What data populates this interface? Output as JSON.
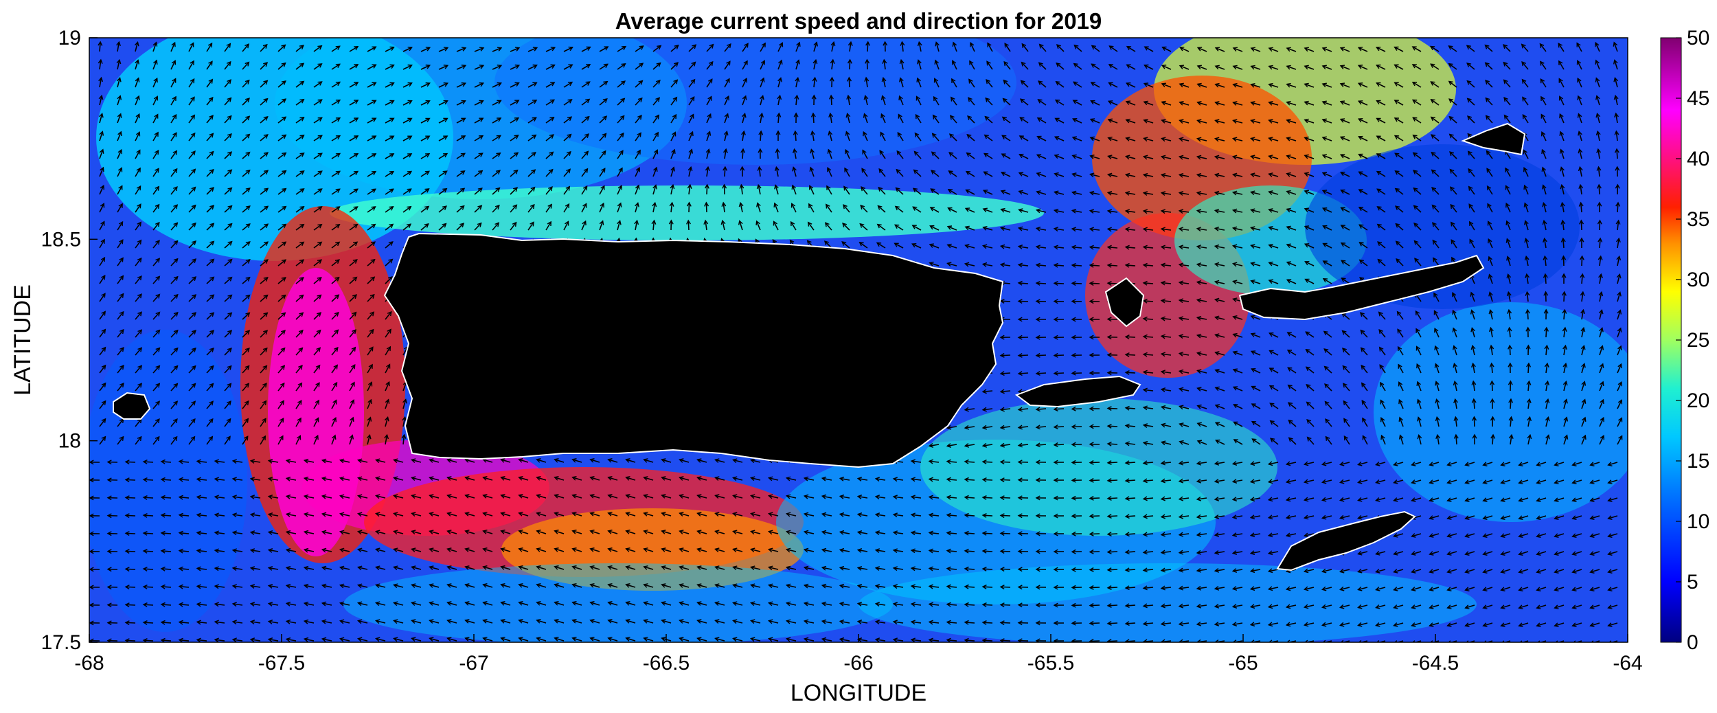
{
  "chart_data": {
    "type": "heatmap",
    "title": "Average current speed and direction for 2019",
    "xlabel": "LONGITUDE",
    "ylabel": "LATITUDE",
    "xlim": [
      -68,
      -64
    ],
    "ylim": [
      17.5,
      19
    ],
    "x_ticks": [
      "-68",
      "-67.5",
      "-67",
      "-66.5",
      "-66",
      "-65.5",
      "-65",
      "-64.5",
      "-64"
    ],
    "y_ticks": [
      "17.5",
      "18",
      "18.5",
      "19"
    ],
    "colorbar": {
      "range": [
        0,
        50
      ],
      "ticks": [
        "0",
        "5",
        "10",
        "15",
        "20",
        "25",
        "30",
        "35",
        "40",
        "45",
        "50"
      ],
      "colormap": "jet-like (dark blue to cyan to yellow to red to magenta to purple)"
    },
    "overlay": "current direction arrows (black quiver)",
    "land_color": "#000000",
    "coastline_color": "#ffffff",
    "grid": false
  }
}
